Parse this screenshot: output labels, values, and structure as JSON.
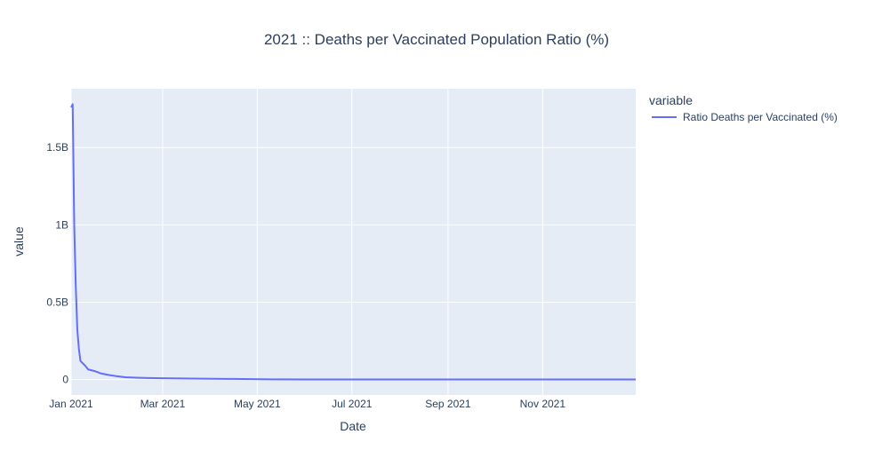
{
  "chart_data": {
    "type": "line",
    "title": "2021 :: Deaths per Vaccinated Population Ratio (%)",
    "xlabel": "Date",
    "ylabel": "value",
    "x_type": "date",
    "xlim": [
      "2021-01-01",
      "2021-12-31"
    ],
    "ylim": [
      -100000000,
      1880000000
    ],
    "x_ticks": [
      {
        "date": "2021-01-01",
        "label": "Jan 2021"
      },
      {
        "date": "2021-03-01",
        "label": "Mar 2021"
      },
      {
        "date": "2021-05-01",
        "label": "May 2021"
      },
      {
        "date": "2021-07-01",
        "label": "Jul 2021"
      },
      {
        "date": "2021-09-01",
        "label": "Sep 2021"
      },
      {
        "date": "2021-11-01",
        "label": "Nov 2021"
      }
    ],
    "y_ticks": [
      {
        "value": 0,
        "label": "0"
      },
      {
        "value": 500000000,
        "label": "0.5B"
      },
      {
        "value": 1000000000,
        "label": "1B"
      },
      {
        "value": 1500000000,
        "label": "1.5B"
      }
    ],
    "grid": true,
    "legend": {
      "title": "variable",
      "position": "top-right"
    },
    "colors": {
      "series": "#636efa",
      "plot_bg": "#e5ecf6",
      "grid": "#ffffff",
      "text": "#2a3f5f"
    },
    "series": [
      {
        "name": "Ratio Deaths per Vaccinated (%)",
        "x": [
          "2021-01-01",
          "2021-01-02",
          "2021-01-03",
          "2021-01-04",
          "2021-01-05",
          "2021-01-06",
          "2021-01-07",
          "2021-01-08",
          "2021-01-10",
          "2021-01-12",
          "2021-01-14",
          "2021-01-16",
          "2021-01-20",
          "2021-01-25",
          "2021-01-30",
          "2021-02-05",
          "2021-02-12",
          "2021-02-20",
          "2021-03-01",
          "2021-03-20",
          "2021-04-15",
          "2021-05-10",
          "2021-06-01",
          "2021-08-01",
          "2021-10-01",
          "2021-12-31"
        ],
        "y": [
          1760000000,
          1780000000,
          1000000000,
          600000000,
          320000000,
          200000000,
          120000000,
          110000000,
          90000000,
          65000000,
          60000000,
          55000000,
          40000000,
          30000000,
          22000000,
          15000000,
          12000000,
          10000000,
          8000000,
          6000000,
          4000000,
          1000000,
          500000,
          300000,
          200000,
          100000
        ]
      }
    ]
  }
}
